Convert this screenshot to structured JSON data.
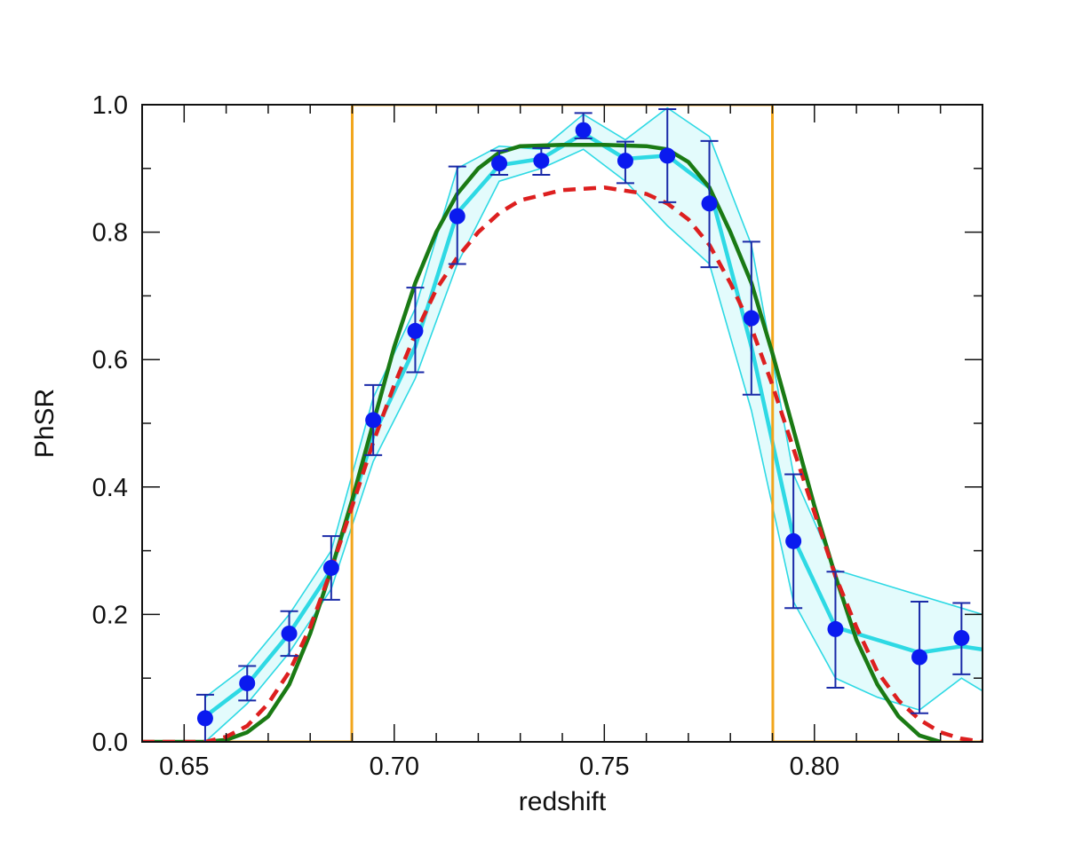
{
  "chart_data": {
    "type": "line",
    "title": "",
    "xlabel": "redshift",
    "ylabel": "PhSR",
    "xlim": [
      0.64,
      0.84
    ],
    "ylim": [
      0.0,
      1.0
    ],
    "x_major_ticks": [
      0.65,
      0.7,
      0.75,
      0.8
    ],
    "x_tick_labels": [
      "0.65",
      "0.70",
      "0.75",
      "0.80"
    ],
    "x_minor_step": 0.01,
    "y_major_ticks": [
      0.0,
      0.2,
      0.4,
      0.6,
      0.8,
      1.0
    ],
    "y_tick_labels": [
      "0.0",
      "0.2",
      "0.4",
      "0.6",
      "0.8",
      "1.0"
    ],
    "y_minor_step": 0.1,
    "colors": {
      "points": "#0a1aef",
      "errorbars": "#1a2aa8",
      "band_fill": "#e3fbfc",
      "band_line": "#2ed9e4",
      "fit_green": "#1a7a14",
      "fit_red": "#dd1f1f",
      "tophat": "#f2a61c",
      "axis": "#111111"
    },
    "series": [
      {
        "name": "tophat selection window",
        "style": "orange-solid",
        "x": [
          0.64,
          0.6899,
          0.69,
          0.79,
          0.7901,
          0.84
        ],
        "y": [
          0.0,
          0.0,
          1.0,
          1.0,
          0.0,
          0.0
        ]
      },
      {
        "name": "PhSR measurements",
        "style": "points-with-errorbars",
        "x": [
          0.655,
          0.665,
          0.675,
          0.685,
          0.695,
          0.705,
          0.715,
          0.725,
          0.735,
          0.745,
          0.755,
          0.765,
          0.775,
          0.785,
          0.795,
          0.805,
          0.825,
          0.835
        ],
        "y": [
          0.037,
          0.092,
          0.17,
          0.273,
          0.505,
          0.645,
          0.825,
          0.908,
          0.912,
          0.96,
          0.912,
          0.92,
          0.845,
          0.665,
          0.315,
          0.177,
          0.133,
          0.163
        ],
        "err_low": [
          0.037,
          0.027,
          0.035,
          0.05,
          0.055,
          0.065,
          0.075,
          0.018,
          0.022,
          0.013,
          0.035,
          0.073,
          0.1,
          0.12,
          0.105,
          0.092,
          0.088,
          0.057
        ],
        "err_high": [
          0.037,
          0.027,
          0.035,
          0.05,
          0.055,
          0.068,
          0.078,
          0.02,
          0.02,
          0.027,
          0.03,
          0.073,
          0.098,
          0.12,
          0.105,
          0.09,
          0.087,
          0.055
        ]
      },
      {
        "name": "band central",
        "style": "cyan-thick",
        "x": [
          0.655,
          0.665,
          0.675,
          0.685,
          0.695,
          0.705,
          0.715,
          0.725,
          0.735,
          0.745,
          0.755,
          0.765,
          0.775,
          0.785,
          0.795,
          0.805,
          0.815,
          0.825,
          0.835,
          0.84
        ],
        "y": [
          0.04,
          0.09,
          0.17,
          0.27,
          0.48,
          0.62,
          0.83,
          0.905,
          0.915,
          0.955,
          0.915,
          0.92,
          0.87,
          0.62,
          0.32,
          0.18,
          0.16,
          0.14,
          0.15,
          0.145
        ]
      },
      {
        "name": "band upper",
        "style": "cyan-thin",
        "x": [
          0.655,
          0.665,
          0.675,
          0.685,
          0.695,
          0.705,
          0.715,
          0.725,
          0.735,
          0.745,
          0.755,
          0.765,
          0.775,
          0.785,
          0.795,
          0.805,
          0.815,
          0.825,
          0.835,
          0.84
        ],
        "y": [
          0.07,
          0.12,
          0.2,
          0.3,
          0.54,
          0.68,
          0.9,
          0.935,
          0.93,
          0.985,
          0.945,
          0.995,
          0.95,
          0.78,
          0.42,
          0.27,
          0.25,
          0.23,
          0.21,
          0.2
        ]
      },
      {
        "name": "band lower",
        "style": "cyan-thin",
        "x": [
          0.655,
          0.665,
          0.675,
          0.685,
          0.695,
          0.705,
          0.715,
          0.725,
          0.735,
          0.745,
          0.755,
          0.765,
          0.775,
          0.785,
          0.795,
          0.805,
          0.815,
          0.825,
          0.835,
          0.84
        ],
        "y": [
          0.0,
          0.06,
          0.14,
          0.24,
          0.44,
          0.57,
          0.75,
          0.88,
          0.9,
          0.93,
          0.88,
          0.81,
          0.75,
          0.52,
          0.22,
          0.1,
          0.07,
          0.05,
          0.1,
          0.08
        ]
      },
      {
        "name": "green fit",
        "style": "green-solid",
        "x": [
          0.64,
          0.655,
          0.66,
          0.665,
          0.67,
          0.675,
          0.68,
          0.685,
          0.69,
          0.695,
          0.7,
          0.705,
          0.71,
          0.715,
          0.72,
          0.725,
          0.73,
          0.74,
          0.75,
          0.76,
          0.765,
          0.77,
          0.775,
          0.78,
          0.785,
          0.79,
          0.795,
          0.8,
          0.805,
          0.81,
          0.815,
          0.82,
          0.825,
          0.83
        ],
        "y": [
          0.0,
          0.0,
          0.003,
          0.015,
          0.04,
          0.09,
          0.17,
          0.27,
          0.38,
          0.5,
          0.62,
          0.72,
          0.8,
          0.86,
          0.9,
          0.925,
          0.935,
          0.937,
          0.937,
          0.935,
          0.93,
          0.91,
          0.87,
          0.8,
          0.72,
          0.61,
          0.49,
          0.37,
          0.26,
          0.16,
          0.09,
          0.04,
          0.01,
          0.0
        ]
      },
      {
        "name": "red fit",
        "style": "red-dashed",
        "x": [
          0.64,
          0.655,
          0.66,
          0.665,
          0.67,
          0.675,
          0.68,
          0.685,
          0.69,
          0.695,
          0.7,
          0.705,
          0.71,
          0.715,
          0.72,
          0.725,
          0.73,
          0.74,
          0.75,
          0.76,
          0.765,
          0.77,
          0.775,
          0.78,
          0.785,
          0.79,
          0.795,
          0.8,
          0.805,
          0.81,
          0.815,
          0.82,
          0.825,
          0.83,
          0.835,
          0.84
        ],
        "y": [
          0.0,
          0.0,
          0.008,
          0.025,
          0.06,
          0.11,
          0.18,
          0.27,
          0.37,
          0.47,
          0.56,
          0.64,
          0.71,
          0.76,
          0.8,
          0.83,
          0.85,
          0.866,
          0.87,
          0.86,
          0.845,
          0.82,
          0.78,
          0.72,
          0.65,
          0.56,
          0.46,
          0.36,
          0.26,
          0.18,
          0.11,
          0.065,
          0.035,
          0.015,
          0.005,
          0.0
        ]
      }
    ]
  }
}
